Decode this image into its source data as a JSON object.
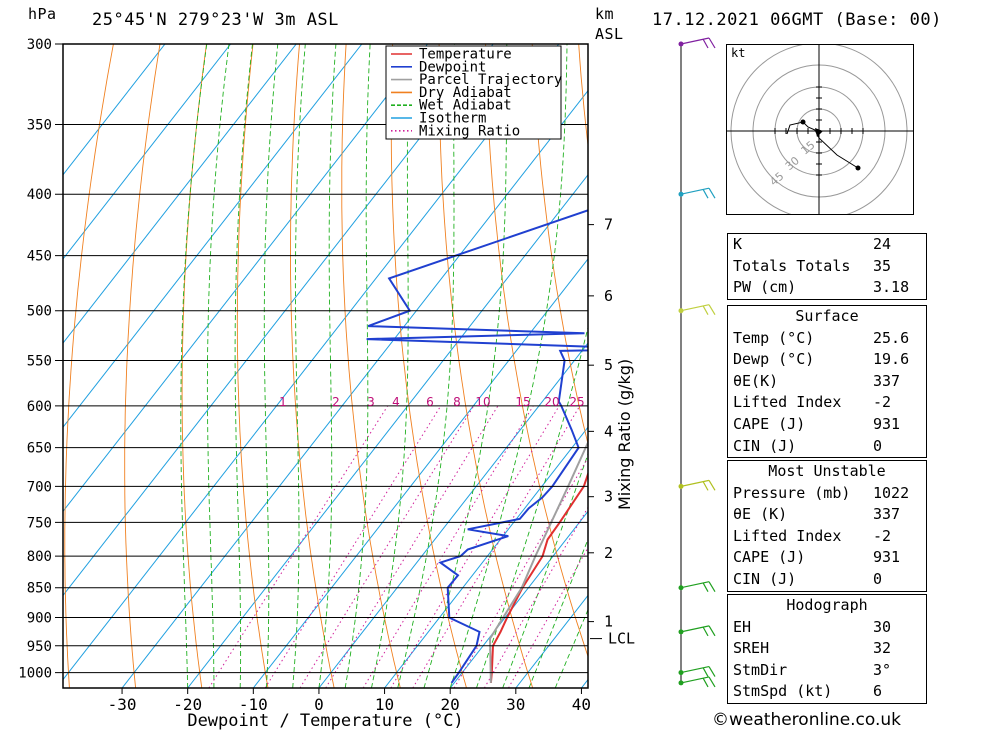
{
  "header": {
    "location": "25°45'N  279°23'W  3m  ASL",
    "datetime": "17.12.2021  06GMT  (Base: 00)",
    "unit_pressure": "hPa",
    "unit_km": "km",
    "unit_asl": "ASL"
  },
  "chart_data": {
    "type": "line",
    "subtype": "skew-t log-p diagram",
    "xlabel": "Dewpoint / Temperature (°C)",
    "ylabel_right": "Mixing Ratio (g/kg)",
    "x_ticks": [
      -30,
      -20,
      -10,
      0,
      10,
      20,
      30,
      40
    ],
    "pressure_levels": [
      300,
      350,
      400,
      450,
      500,
      550,
      600,
      650,
      700,
      750,
      800,
      850,
      900,
      950,
      1000
    ],
    "xlim": [
      -39,
      41
    ],
    "ylim_hpa": [
      1030,
      300
    ],
    "km_ticks": [
      {
        "label": "1",
        "p": 907
      },
      {
        "label": "2",
        "p": 795
      },
      {
        "label": "3",
        "p": 714
      },
      {
        "label": "4",
        "p": 630
      },
      {
        "label": "5",
        "p": 555
      },
      {
        "label": "6",
        "p": 486
      },
      {
        "label": "7",
        "p": 424
      }
    ],
    "lcl": {
      "label": "LCL",
      "p": 937
    },
    "mixing_ratio_labels": [
      {
        "label": "1",
        "x": 283
      },
      {
        "label": "2",
        "x": 336
      },
      {
        "label": "3",
        "x": 371
      },
      {
        "label": "4",
        "x": 396
      },
      {
        "label": "6",
        "x": 430
      },
      {
        "label": "8",
        "x": 457
      },
      {
        "label": "10",
        "x": 483
      },
      {
        "label": "15",
        "x": 523
      },
      {
        "label": "20",
        "x": 552
      },
      {
        "label": "25",
        "x": 577
      }
    ],
    "legend": [
      {
        "name": "Temperature",
        "color": "#e03030",
        "style": "solid"
      },
      {
        "name": "Dewpoint",
        "color": "#2040d0",
        "style": "solid"
      },
      {
        "name": "Parcel Trajectory",
        "color": "#a0a0a0",
        "style": "solid"
      },
      {
        "name": "Dry Adiabat",
        "color": "#f08020",
        "style": "solid"
      },
      {
        "name": "Wet Adiabat",
        "color": "#20b020",
        "style": "dashed"
      },
      {
        "name": "Isotherm",
        "color": "#20a0e0",
        "style": "solid"
      },
      {
        "name": "Mixing Ratio",
        "color": "#d0209a",
        "style": "dotted"
      }
    ],
    "series": [
      {
        "name": "Temperature",
        "color": "#e03030",
        "points": [
          [
            1020,
            25.6
          ],
          [
            1000,
            24.5
          ],
          [
            950,
            21.5
          ],
          [
            925,
            21.0
          ],
          [
            900,
            20.3
          ],
          [
            850,
            19.1
          ],
          [
            800,
            18.4
          ],
          [
            775,
            17.2
          ],
          [
            750,
            17.0
          ],
          [
            700,
            16.4
          ],
          [
            650,
            13.8
          ],
          [
            620,
            11.9
          ],
          [
            600,
            10.5
          ],
          [
            590,
            10.7
          ],
          [
            550,
            8.2
          ],
          [
            530,
            6.8
          ],
          [
            510,
            6.8
          ],
          [
            500,
            6.0
          ],
          [
            450,
            0.5
          ],
          [
            400,
            -6.2
          ],
          [
            375,
            -10.0
          ],
          [
            350,
            -11.8
          ],
          [
            300,
            -16.9
          ]
        ]
      },
      {
        "name": "Dewpoint",
        "color": "#2040d0",
        "points": [
          [
            1020,
            19.6
          ],
          [
            1000,
            19.5
          ],
          [
            950,
            19.0
          ],
          [
            925,
            17.8
          ],
          [
            900,
            11.5
          ],
          [
            850,
            7.7
          ],
          [
            830,
            7.8
          ],
          [
            810,
            3.6
          ],
          [
            800,
            5.9
          ],
          [
            790,
            6.2
          ],
          [
            770,
            10.8
          ],
          [
            760,
            3.8
          ],
          [
            745,
            10.5
          ],
          [
            730,
            10.6
          ],
          [
            715,
            11.4
          ],
          [
            700,
            11.6
          ],
          [
            650,
            11.0
          ],
          [
            628,
            7.8
          ],
          [
            600,
            3.4
          ],
          [
            595,
            2.5
          ],
          [
            550,
            -1.5
          ],
          [
            540,
            -3.3
          ],
          [
            538,
            11.2
          ],
          [
            528,
            -34.2
          ],
          [
            522,
            -1.7
          ],
          [
            515,
            -35.5
          ],
          [
            500,
            -31.0
          ],
          [
            470,
            -38.0
          ],
          [
            400,
            -10.5
          ],
          [
            385,
            -8.8
          ],
          [
            300,
            -33.0
          ]
        ]
      },
      {
        "name": "Parcel Trajectory",
        "color": "#a0a0a0",
        "points": [
          [
            1020,
            25.6
          ],
          [
            937,
            20.2
          ],
          [
            850,
            19.0
          ],
          [
            800,
            17.3
          ],
          [
            700,
            14.0
          ],
          [
            600,
            10.0
          ],
          [
            500,
            4.0
          ],
          [
            400,
            -5.0
          ],
          [
            350,
            -9.4
          ],
          [
            300,
            -14.5
          ]
        ]
      }
    ],
    "wind_barbs_hpa": [
      1020,
      1000,
      925,
      850,
      700,
      500,
      400,
      300
    ]
  },
  "hodograph": {
    "unit": "kt",
    "ring_labels": [
      "15",
      "30",
      "45"
    ]
  },
  "indices": {
    "general": [
      {
        "label": "K",
        "value": "24"
      },
      {
        "label": "Totals Totals",
        "value": "35"
      },
      {
        "label": "PW (cm)",
        "value": "3.18"
      }
    ],
    "surface": {
      "title": "Surface",
      "rows": [
        {
          "label": "Temp (°C)",
          "value": "25.6"
        },
        {
          "label": "Dewp (°C)",
          "value": "19.6"
        },
        {
          "label": "θE(K)",
          "value": "337"
        },
        {
          "label": "Lifted Index",
          "value": "-2"
        },
        {
          "label": "CAPE (J)",
          "value": "931"
        },
        {
          "label": "CIN (J)",
          "value": "0"
        }
      ]
    },
    "most_unstable": {
      "title": "Most Unstable",
      "rows": [
        {
          "label": "Pressure (mb)",
          "value": "1022"
        },
        {
          "label": "θE (K)",
          "value": "337"
        },
        {
          "label": "Lifted Index",
          "value": "-2"
        },
        {
          "label": "CAPE (J)",
          "value": "931"
        },
        {
          "label": "CIN (J)",
          "value": "0"
        }
      ]
    },
    "hodograph_stats": {
      "title": "Hodograph",
      "rows": [
        {
          "label": "EH",
          "value": "30"
        },
        {
          "label": "SREH",
          "value": "32"
        },
        {
          "label": "StmDir",
          "value": "3°"
        },
        {
          "label": "StmSpd (kt)",
          "value": "6"
        }
      ]
    }
  },
  "footer": {
    "copyright": "©weatheronline.co.uk"
  }
}
